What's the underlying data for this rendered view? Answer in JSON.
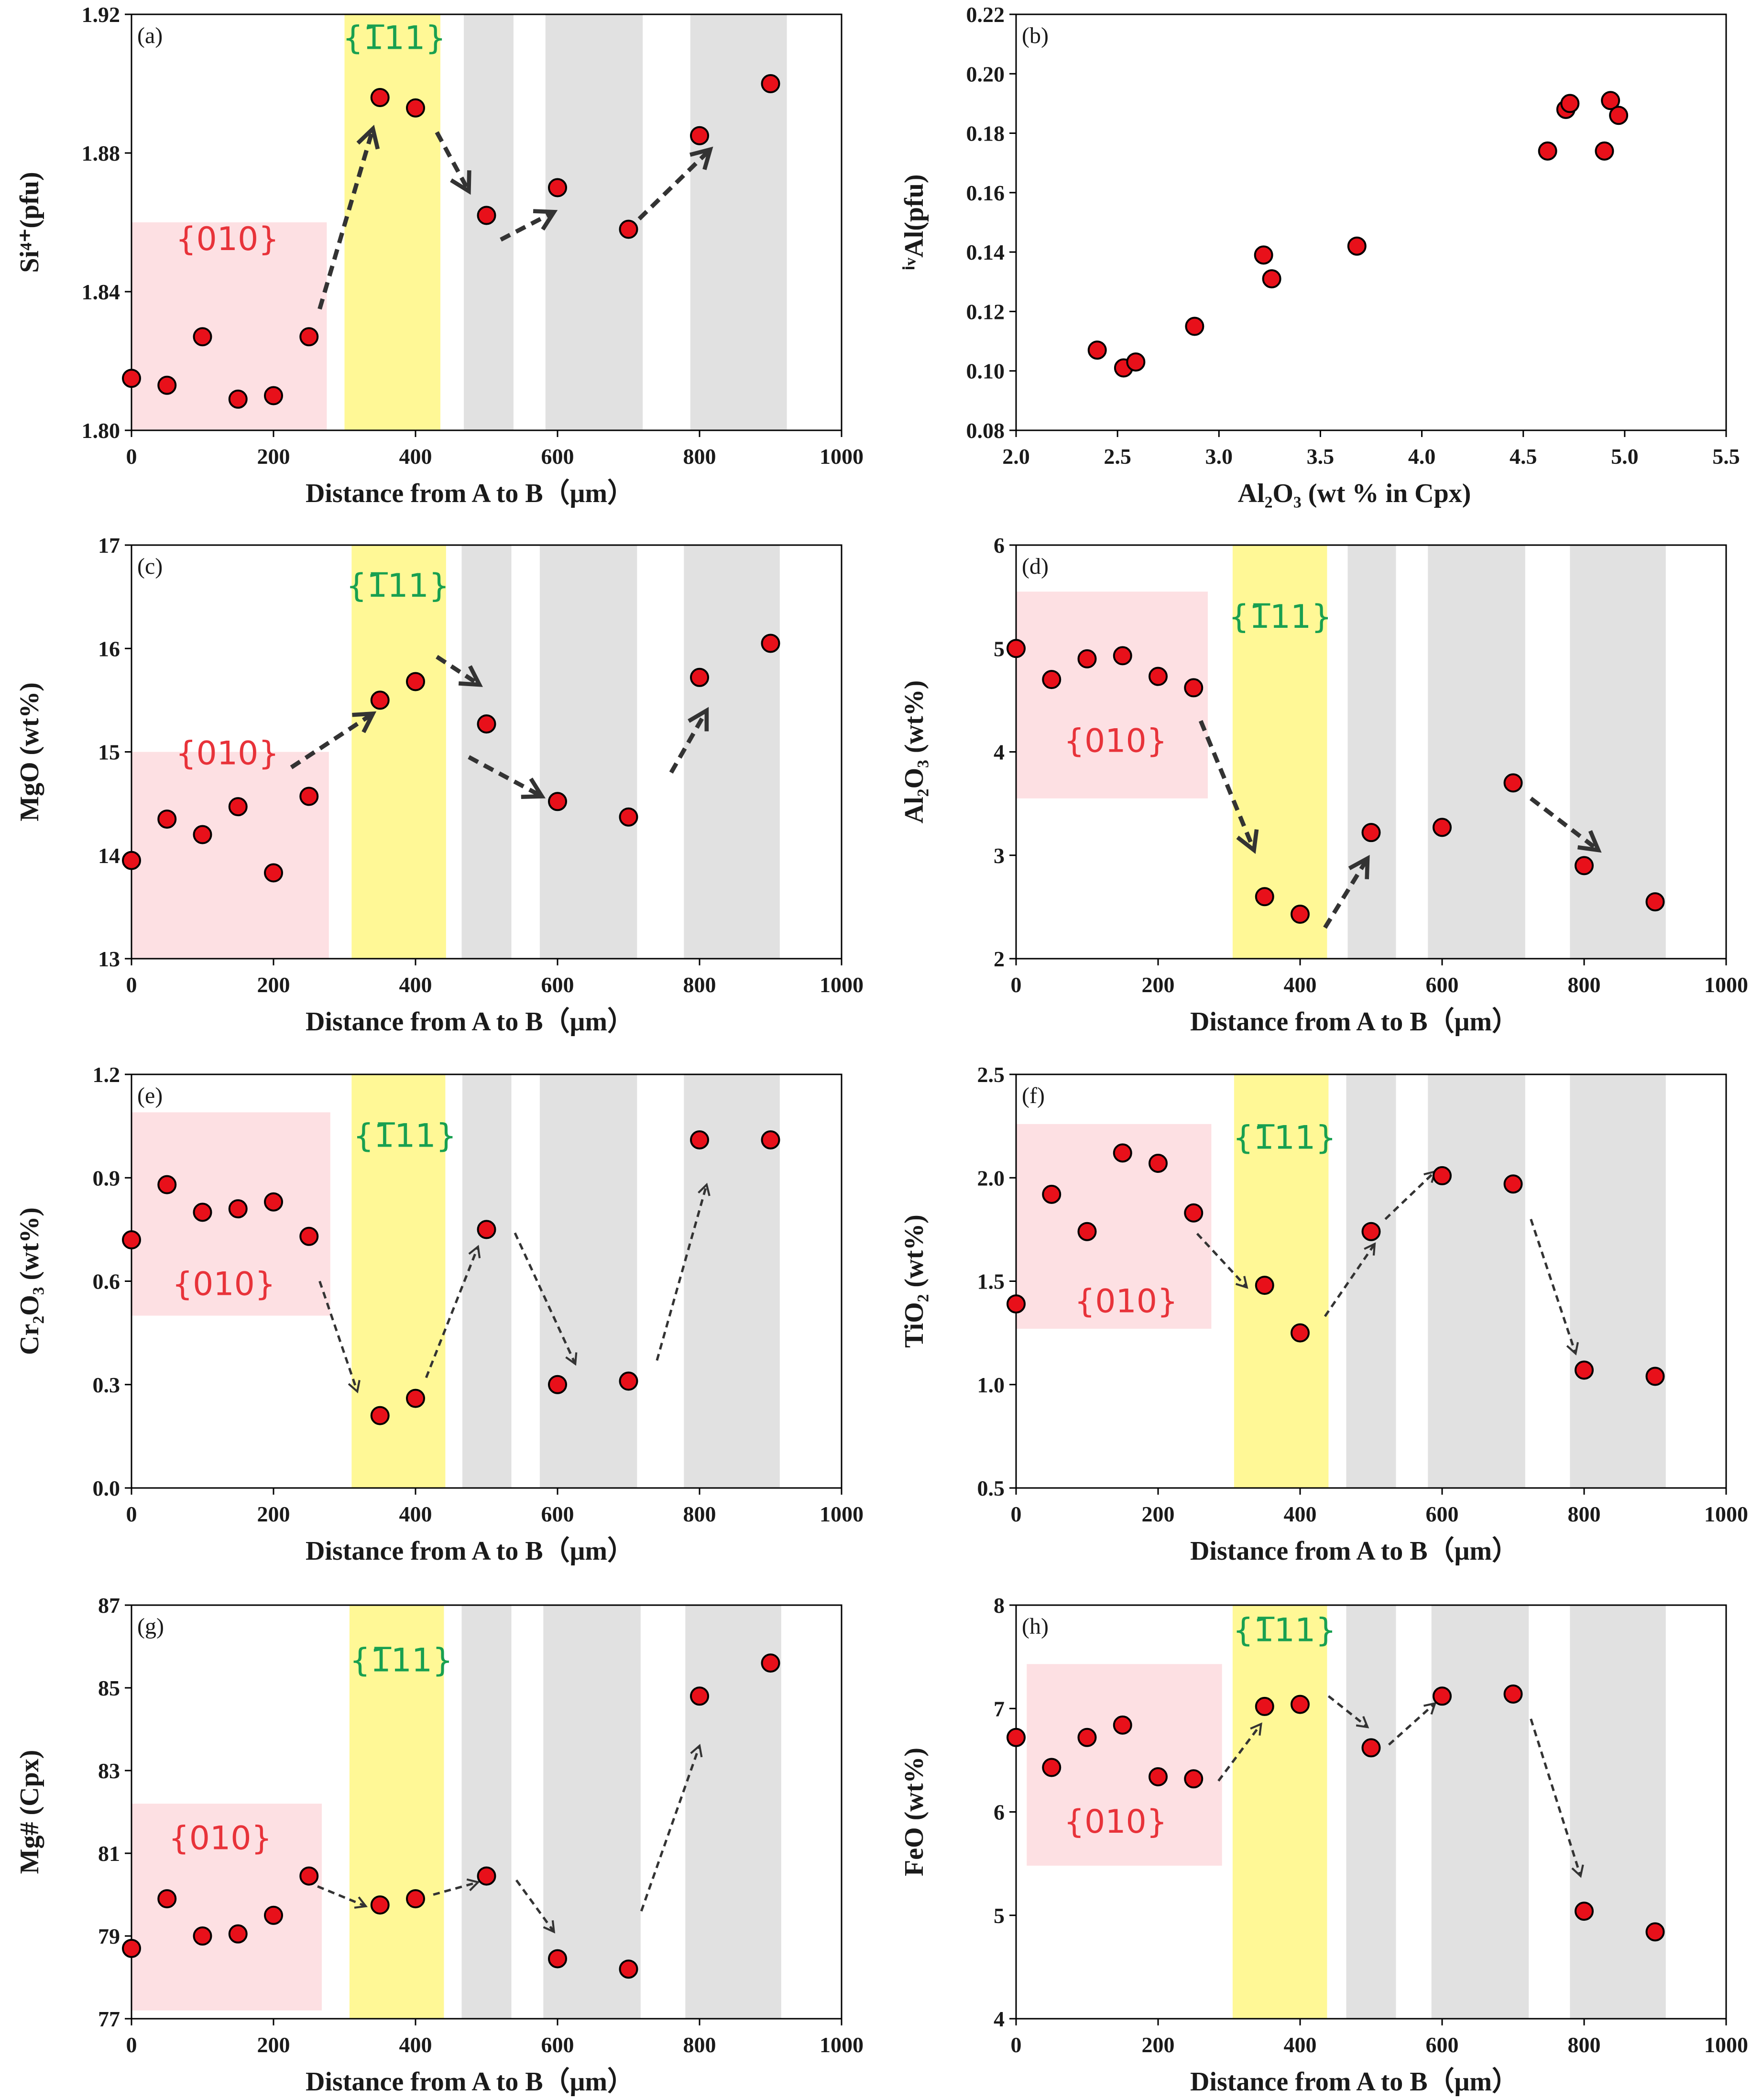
{
  "colors": {
    "pink": "#fde0e3",
    "yellow": "#fff896",
    "gray": "#e1e1e1",
    "point": "#e8101a",
    "arrow": "#333333",
    "label010": "#e8333a",
    "label111": "#18a050"
  },
  "chart_data": [
    {
      "id": "a",
      "type": "scatter",
      "panel_label": "(a)",
      "xlabel": "Distance from A to B（μm）",
      "ylabel": "Si⁴⁺(pfu)",
      "xlim": [
        0,
        1000
      ],
      "ylim": [
        1.8,
        1.92
      ],
      "xticks": [
        "0",
        "200",
        "400",
        "600",
        "800",
        "1000"
      ],
      "yticks": [
        "1.80",
        "1.84",
        "1.88",
        "1.92"
      ],
      "x": [
        0,
        50,
        100,
        150,
        200,
        250,
        350,
        400,
        500,
        600,
        700,
        800,
        900
      ],
      "y": [
        1.815,
        1.813,
        1.827,
        1.809,
        1.81,
        1.827,
        1.896,
        1.893,
        1.862,
        1.87,
        1.858,
        1.885,
        1.9
      ],
      "regions": [
        {
          "kind": "pink",
          "x": [
            0,
            275
          ],
          "y": [
            1.8,
            1.86
          ],
          "label": "{010}",
          "label_at": [
            135,
            1.852
          ]
        },
        {
          "kind": "yellow",
          "x": [
            300,
            435
          ],
          "y": [
            1.8,
            1.92
          ],
          "label": "{1̅11}",
          "label_at": [
            370,
            1.91
          ]
        },
        {
          "kind": "gray",
          "x": [
            468,
            538
          ],
          "y": [
            1.8,
            1.92
          ]
        },
        {
          "kind": "gray",
          "x": [
            583,
            720
          ],
          "y": [
            1.8,
            1.92
          ]
        },
        {
          "kind": "gray",
          "x": [
            787,
            923
          ],
          "y": [
            1.8,
            1.92
          ]
        }
      ],
      "arrows": [
        {
          "from": [
            265,
            1.835
          ],
          "to": [
            340,
            1.887
          ],
          "style": "bold"
        },
        {
          "from": [
            430,
            1.886
          ],
          "to": [
            475,
            1.869
          ],
          "style": "bold"
        },
        {
          "from": [
            520,
            1.855
          ],
          "to": [
            595,
            1.863
          ],
          "style": "bold"
        },
        {
          "from": [
            715,
            1.861
          ],
          "to": [
            815,
            1.881
          ],
          "style": "bold"
        }
      ]
    },
    {
      "id": "b",
      "type": "scatter",
      "panel_label": "(b)",
      "xlabel": "Al₂O₃ (wt % in Cpx)",
      "ylabel": "ⁱᵛAl(pfu)",
      "xlim": [
        2.0,
        5.5
      ],
      "ylim": [
        0.08,
        0.22
      ],
      "xticks": [
        "2.0",
        "2.5",
        "3.0",
        "3.5",
        "4.0",
        "4.5",
        "5.0",
        "5.5"
      ],
      "yticks": [
        "0.08",
        "0.10",
        "0.12",
        "0.14",
        "0.16",
        "0.18",
        "0.20",
        "0.22"
      ],
      "x": [
        2.4,
        2.53,
        2.59,
        2.88,
        3.22,
        3.26,
        3.68,
        4.62,
        4.71,
        4.73,
        4.9,
        4.93,
        4.97
      ],
      "y": [
        0.107,
        0.101,
        0.103,
        0.115,
        0.139,
        0.131,
        0.142,
        0.174,
        0.188,
        0.19,
        0.174,
        0.191,
        0.186
      ],
      "regions": [],
      "arrows": []
    },
    {
      "id": "c",
      "type": "scatter",
      "panel_label": "(c)",
      "xlabel": "Distance from A to B（μm）",
      "ylabel": "MgO (wt%)",
      "xlim": [
        0,
        1000
      ],
      "ylim": [
        13,
        17
      ],
      "xticks": [
        "0",
        "200",
        "400",
        "600",
        "800",
        "1000"
      ],
      "yticks": [
        "13",
        "14",
        "15",
        "16",
        "17"
      ],
      "x": [
        0,
        50,
        100,
        150,
        200,
        250,
        350,
        400,
        500,
        600,
        700,
        800,
        900
      ],
      "y": [
        13.95,
        14.35,
        14.2,
        14.47,
        13.83,
        14.57,
        15.5,
        15.68,
        15.27,
        14.52,
        14.37,
        15.72,
        16.05
      ],
      "regions": [
        {
          "kind": "pink",
          "x": [
            0,
            278
          ],
          "y": [
            13,
            15.0
          ],
          "label": "{010}",
          "label_at": [
            135,
            14.88
          ]
        },
        {
          "kind": "yellow",
          "x": [
            310,
            443
          ],
          "y": [
            13,
            17
          ],
          "label": "{1̅11}",
          "label_at": [
            375,
            16.5
          ]
        },
        {
          "kind": "gray",
          "x": [
            465,
            535
          ],
          "y": [
            13,
            17
          ]
        },
        {
          "kind": "gray",
          "x": [
            575,
            712
          ],
          "y": [
            13,
            17
          ]
        },
        {
          "kind": "gray",
          "x": [
            778,
            913
          ],
          "y": [
            13,
            17
          ]
        }
      ],
      "arrows": [
        {
          "from": [
            225,
            14.85
          ],
          "to": [
            340,
            15.37
          ],
          "style": "bold"
        },
        {
          "from": [
            430,
            15.92
          ],
          "to": [
            490,
            15.65
          ],
          "style": "bold"
        },
        {
          "from": [
            475,
            14.95
          ],
          "to": [
            578,
            14.57
          ],
          "style": "bold"
        },
        {
          "from": [
            760,
            14.8
          ],
          "to": [
            810,
            15.4
          ],
          "style": "bold"
        }
      ]
    },
    {
      "id": "d",
      "type": "scatter",
      "panel_label": "(d)",
      "xlabel": "Distance from A to B（μm）",
      "ylabel": "Al₂O₃ (wt%)",
      "xlim": [
        0,
        1000
      ],
      "ylim": [
        2,
        6
      ],
      "xticks": [
        "0",
        "200",
        "400",
        "600",
        "800",
        "1000"
      ],
      "yticks": [
        "2",
        "3",
        "4",
        "5",
        "6"
      ],
      "x": [
        0,
        50,
        100,
        150,
        200,
        250,
        350,
        400,
        500,
        600,
        700,
        800,
        900
      ],
      "y": [
        5.0,
        4.7,
        4.9,
        4.93,
        4.73,
        4.62,
        2.6,
        2.43,
        3.22,
        3.27,
        3.7,
        2.9,
        2.55
      ],
      "regions": [
        {
          "kind": "pink",
          "x": [
            0,
            270
          ],
          "y": [
            3.55,
            5.55
          ],
          "label": "{010}",
          "label_at": [
            140,
            4.0
          ]
        },
        {
          "kind": "yellow",
          "x": [
            305,
            438
          ],
          "y": [
            2,
            6
          ],
          "label": "{1̅11}",
          "label_at": [
            372,
            5.2
          ]
        },
        {
          "kind": "gray",
          "x": [
            467,
            535
          ],
          "y": [
            2,
            6
          ]
        },
        {
          "kind": "gray",
          "x": [
            580,
            717
          ],
          "y": [
            2,
            6
          ]
        },
        {
          "kind": "gray",
          "x": [
            780,
            915
          ],
          "y": [
            2,
            6
          ]
        }
      ],
      "arrows": [
        {
          "from": [
            260,
            4.3
          ],
          "to": [
            335,
            3.05
          ],
          "style": "bold"
        },
        {
          "from": [
            435,
            2.3
          ],
          "to": [
            495,
            2.97
          ],
          "style": "bold"
        },
        {
          "from": [
            725,
            3.55
          ],
          "to": [
            820,
            3.05
          ],
          "style": "bold"
        }
      ]
    },
    {
      "id": "e",
      "type": "scatter",
      "panel_label": "(e)",
      "xlabel": "Distance from A to B（μm）",
      "ylabel": "Cr₂O₃ (wt%)",
      "xlim": [
        0,
        1000
      ],
      "ylim": [
        0.0,
        1.2
      ],
      "xticks": [
        "0",
        "200",
        "400",
        "600",
        "800",
        "1000"
      ],
      "yticks": [
        "0.0",
        "0.3",
        "0.6",
        "0.9",
        "1.2"
      ],
      "x": [
        0,
        50,
        100,
        150,
        200,
        250,
        350,
        400,
        500,
        600,
        700,
        800,
        900
      ],
      "y": [
        0.72,
        0.88,
        0.8,
        0.81,
        0.83,
        0.73,
        0.21,
        0.26,
        0.75,
        0.3,
        0.31,
        1.01,
        1.01
      ],
      "regions": [
        {
          "kind": "pink",
          "x": [
            0,
            280
          ],
          "y": [
            0.5,
            1.09
          ],
          "label": "{010}",
          "label_at": [
            130,
            0.56
          ]
        },
        {
          "kind": "yellow",
          "x": [
            310,
            442
          ],
          "y": [
            0,
            1.2
          ],
          "label": "{1̅11}",
          "label_at": [
            385,
            0.99
          ]
        },
        {
          "kind": "gray",
          "x": [
            466,
            535
          ],
          "y": [
            0,
            1.2
          ]
        },
        {
          "kind": "gray",
          "x": [
            575,
            712
          ],
          "y": [
            0,
            1.2
          ]
        },
        {
          "kind": "gray",
          "x": [
            778,
            913
          ],
          "y": [
            0,
            1.2
          ]
        }
      ],
      "arrows": [
        {
          "from": [
            265,
            0.6
          ],
          "to": [
            318,
            0.28
          ],
          "style": "thin"
        },
        {
          "from": [
            415,
            0.32
          ],
          "to": [
            488,
            0.7
          ],
          "style": "thin"
        },
        {
          "from": [
            540,
            0.74
          ],
          "to": [
            625,
            0.36
          ],
          "style": "thin"
        },
        {
          "from": [
            740,
            0.37
          ],
          "to": [
            810,
            0.88
          ],
          "style": "thin"
        }
      ]
    },
    {
      "id": "f",
      "type": "scatter",
      "panel_label": "(f)",
      "xlabel": "Distance from A to B（μm）",
      "ylabel": "TiO₂ (wt%)",
      "xlim": [
        0,
        1000
      ],
      "ylim": [
        0.5,
        2.5
      ],
      "xticks": [
        "0",
        "200",
        "400",
        "600",
        "800",
        "1000"
      ],
      "yticks": [
        "0.5",
        "1.0",
        "1.5",
        "2.0",
        "2.5"
      ],
      "x": [
        0,
        50,
        100,
        150,
        200,
        250,
        350,
        400,
        500,
        600,
        700,
        800,
        900
      ],
      "y": [
        1.39,
        1.92,
        1.74,
        2.12,
        2.07,
        1.83,
        1.48,
        1.25,
        1.74,
        2.01,
        1.97,
        1.07,
        1.04
      ],
      "regions": [
        {
          "kind": "pink",
          "x": [
            0,
            275
          ],
          "y": [
            1.27,
            2.26
          ],
          "label": "{010}",
          "label_at": [
            155,
            1.35
          ]
        },
        {
          "kind": "yellow",
          "x": [
            307,
            440
          ],
          "y": [
            0.5,
            2.5
          ],
          "label": "{1̅11}",
          "label_at": [
            378,
            2.14
          ]
        },
        {
          "kind": "gray",
          "x": [
            465,
            535
          ],
          "y": [
            0.5,
            2.5
          ]
        },
        {
          "kind": "gray",
          "x": [
            580,
            717
          ],
          "y": [
            0.5,
            2.5
          ]
        },
        {
          "kind": "gray",
          "x": [
            780,
            915
          ],
          "y": [
            0.5,
            2.5
          ]
        }
      ],
      "arrows": [
        {
          "from": [
            255,
            1.73
          ],
          "to": [
            325,
            1.47
          ],
          "style": "thin"
        },
        {
          "from": [
            435,
            1.33
          ],
          "to": [
            505,
            1.68
          ],
          "style": "thin"
        },
        {
          "from": [
            520,
            1.8
          ],
          "to": [
            590,
            2.03
          ],
          "style": "thin"
        },
        {
          "from": [
            725,
            1.8
          ],
          "to": [
            788,
            1.15
          ],
          "style": "thin"
        }
      ]
    },
    {
      "id": "g",
      "type": "scatter",
      "panel_label": "(g)",
      "xlabel": "Distance from A to B（μm）",
      "ylabel": "Mg# (Cpx)",
      "xlim": [
        0,
        1000
      ],
      "ylim": [
        77,
        87
      ],
      "xticks": [
        "0",
        "200",
        "400",
        "600",
        "800",
        "1000"
      ],
      "yticks": [
        "77",
        "79",
        "81",
        "83",
        "85",
        "87"
      ],
      "x": [
        0,
        50,
        100,
        150,
        200,
        250,
        350,
        400,
        500,
        600,
        700,
        800,
        900
      ],
      "y": [
        78.7,
        79.9,
        79.0,
        79.05,
        79.5,
        80.45,
        79.75,
        79.9,
        80.45,
        78.45,
        78.2,
        84.8,
        85.6
      ],
      "regions": [
        {
          "kind": "pink",
          "x": [
            -5,
            268
          ],
          "y": [
            77.2,
            82.2
          ],
          "label": "{010}",
          "label_at": [
            125,
            81.1
          ]
        },
        {
          "kind": "yellow",
          "x": [
            307,
            440
          ],
          "y": [
            77,
            87
          ],
          "label": "{1̅11}",
          "label_at": [
            380,
            85.4
          ]
        },
        {
          "kind": "gray",
          "x": [
            465,
            535
          ],
          "y": [
            77,
            87
          ]
        },
        {
          "kind": "gray",
          "x": [
            580,
            717
          ],
          "y": [
            77,
            87
          ]
        },
        {
          "kind": "gray",
          "x": [
            780,
            915
          ],
          "y": [
            77,
            87
          ]
        }
      ],
      "arrows": [
        {
          "from": [
            262,
            80.2
          ],
          "to": [
            330,
            79.72
          ],
          "style": "thin"
        },
        {
          "from": [
            425,
            80.0
          ],
          "to": [
            488,
            80.3
          ],
          "style": "thin"
        },
        {
          "from": [
            542,
            80.35
          ],
          "to": [
            595,
            79.1
          ],
          "style": "thin"
        },
        {
          "from": [
            718,
            79.6
          ],
          "to": [
            800,
            83.6
          ],
          "style": "thin"
        }
      ]
    },
    {
      "id": "h",
      "type": "scatter",
      "panel_label": "(h)",
      "xlabel": "Distance from A to B（μm）",
      "ylabel": "FeO (wt%)",
      "xlim": [
        0,
        1000
      ],
      "ylim": [
        4,
        8
      ],
      "xticks": [
        "0",
        "200",
        "400",
        "600",
        "800",
        "1000"
      ],
      "yticks": [
        "4",
        "5",
        "6",
        "7",
        "8"
      ],
      "x": [
        0,
        50,
        100,
        150,
        200,
        250,
        350,
        400,
        500,
        600,
        700,
        800,
        900
      ],
      "y": [
        6.72,
        6.43,
        6.72,
        6.84,
        6.34,
        6.32,
        7.02,
        7.04,
        6.62,
        7.12,
        7.14,
        5.04,
        4.84
      ],
      "regions": [
        {
          "kind": "pink",
          "x": [
            15,
            290
          ],
          "y": [
            5.48,
            7.43
          ],
          "label": "{010}",
          "label_at": [
            140,
            5.8
          ]
        },
        {
          "kind": "yellow",
          "x": [
            305,
            438
          ],
          "y": [
            4,
            8
          ],
          "label": "{1̅11}",
          "label_at": [
            378,
            7.65
          ]
        },
        {
          "kind": "gray",
          "x": [
            465,
            535
          ],
          "y": [
            4,
            8
          ]
        },
        {
          "kind": "gray",
          "x": [
            585,
            722
          ],
          "y": [
            4,
            8
          ]
        },
        {
          "kind": "gray",
          "x": [
            780,
            915
          ],
          "y": [
            4,
            8
          ]
        }
      ],
      "arrows": [
        {
          "from": [
            285,
            6.3
          ],
          "to": [
            345,
            6.85
          ],
          "style": "thin"
        },
        {
          "from": [
            440,
            7.12
          ],
          "to": [
            495,
            6.82
          ],
          "style": "thin"
        },
        {
          "from": [
            525,
            6.65
          ],
          "to": [
            590,
            7.05
          ],
          "style": "thin"
        },
        {
          "from": [
            725,
            6.9
          ],
          "to": [
            795,
            5.38
          ],
          "style": "thin"
        }
      ]
    }
  ]
}
